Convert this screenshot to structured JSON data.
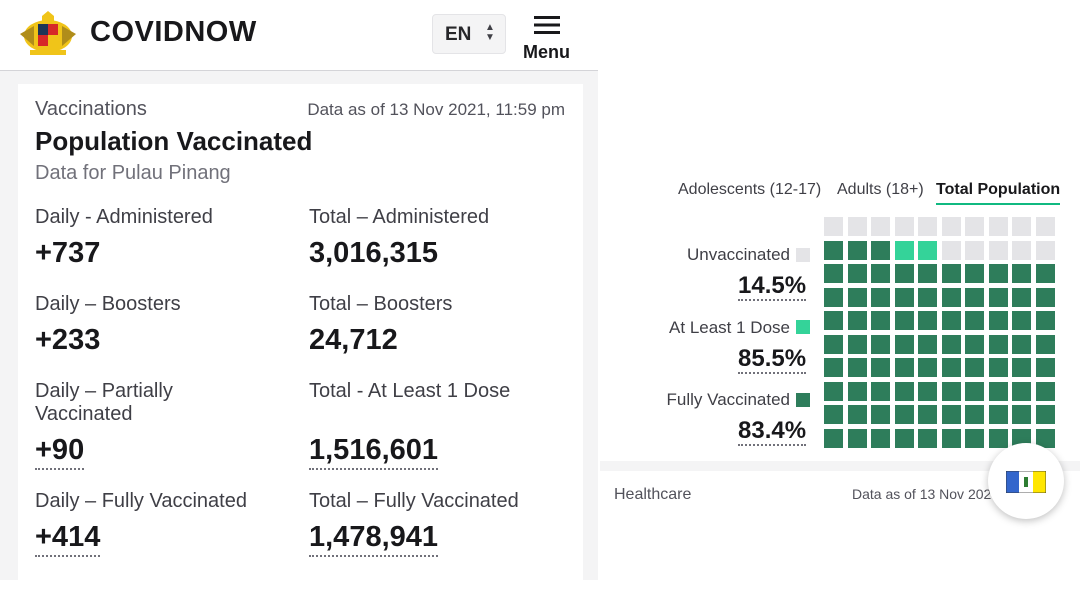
{
  "header": {
    "brand": "COVIDNOW",
    "lang": "EN",
    "menu_label": "Menu",
    "icons": {
      "logo": "coat-of-arms",
      "menu": "hamburger-icon",
      "lang": "select-arrows-icon"
    }
  },
  "vaccinations": {
    "section": "Vaccinations",
    "data_as_of": "Data as of 13 Nov 2021, 11:59 pm",
    "title": "Population Vaccinated",
    "subtitle": "Data for Pulau Pinang",
    "stats": [
      {
        "label": "Daily - Administered",
        "value": "+737"
      },
      {
        "label": "Total – Administered",
        "value": "3,016,315"
      },
      {
        "label": "Daily – Boosters",
        "value": "+233"
      },
      {
        "label": "Total – Boosters",
        "value": "24,712"
      },
      {
        "label": "Daily – Partially Vaccinated",
        "value": "+90"
      },
      {
        "label": "Total - At Least 1 Dose",
        "value": "1,516,601"
      },
      {
        "label": "Daily – Fully Vaccinated",
        "value": "+414"
      },
      {
        "label": "Total – Fully Vaccinated",
        "value": "1,478,941"
      }
    ]
  },
  "population_panel": {
    "tabs": [
      "Adolescents (12-17)",
      "Adults (18+)",
      "Total Population"
    ],
    "active_tab": "Total Population",
    "legend": [
      {
        "label": "Unvaccinated",
        "pct": "14.5%",
        "color": "#e4e4e7"
      },
      {
        "label": "At Least 1 Dose",
        "pct": "85.5%",
        "color": "#34d399"
      },
      {
        "label": "Fully Vaccinated",
        "pct": "83.4%",
        "color": "#2e7d5b"
      }
    ],
    "waffle": {
      "columns": 10,
      "rows": 10,
      "unvaccinated": 14.5,
      "partial": 2.1,
      "fully": 83.4
    }
  },
  "healthcare": {
    "section": "Healthcare",
    "data_as_of": "Data as of 13 Nov 202"
  },
  "colors": {
    "accent": "#10b981",
    "dark_green": "#2e7d5b",
    "light_green": "#34d399"
  }
}
